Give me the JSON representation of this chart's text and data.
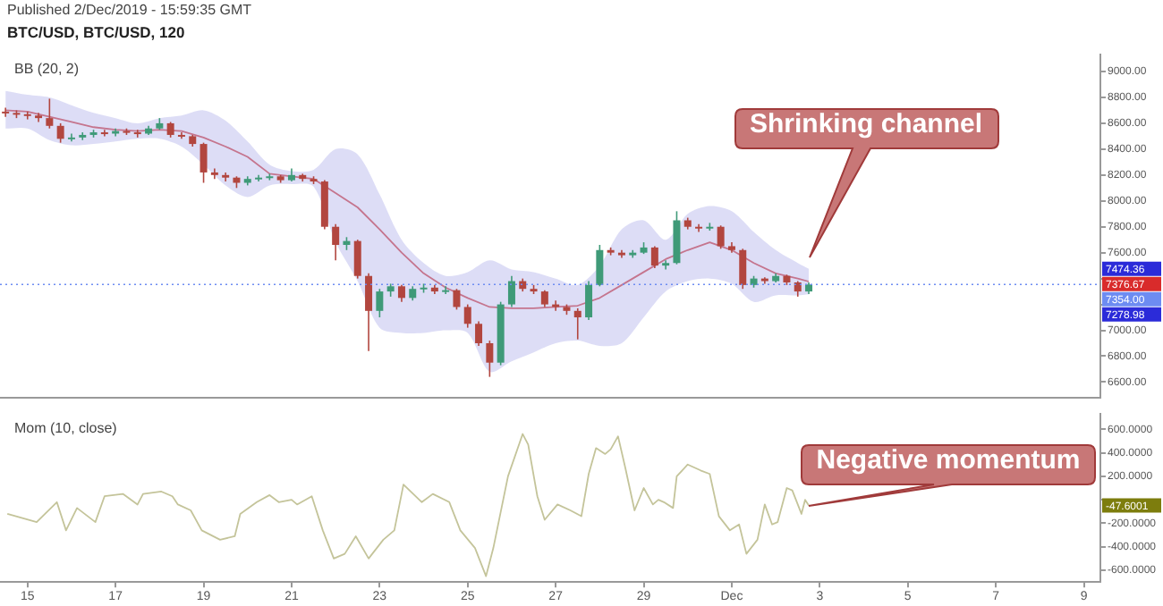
{
  "chart_data": [
    {
      "type": "candlestick",
      "title": "Published 2/Dec/2019 - 15:59:35 GMT",
      "subtitle": "BTC/USD, BTC/USD, 120",
      "x": [
        "2019-11-14T12:00",
        "2019-11-14T18:00",
        "2019-11-15T00:00",
        "2019-11-15T06:00",
        "2019-11-15T12:00",
        "2019-11-15T18:00",
        "2019-11-16T00:00",
        "2019-11-16T06:00",
        "2019-11-16T12:00",
        "2019-11-16T18:00",
        "2019-11-17T00:00",
        "2019-11-17T06:00",
        "2019-11-17T12:00",
        "2019-11-17T18:00",
        "2019-11-18T00:00",
        "2019-11-18T06:00",
        "2019-11-18T12:00",
        "2019-11-18T18:00",
        "2019-11-19T00:00",
        "2019-11-19T06:00",
        "2019-11-19T12:00",
        "2019-11-19T18:00",
        "2019-11-20T00:00",
        "2019-11-20T06:00",
        "2019-11-20T12:00",
        "2019-11-20T18:00",
        "2019-11-21T00:00",
        "2019-11-21T06:00",
        "2019-11-21T12:00",
        "2019-11-21T18:00",
        "2019-11-22T00:00",
        "2019-11-22T06:00",
        "2019-11-22T12:00",
        "2019-11-22T18:00",
        "2019-11-23T00:00",
        "2019-11-23T06:00",
        "2019-11-23T12:00",
        "2019-11-23T18:00",
        "2019-11-24T00:00",
        "2019-11-24T06:00",
        "2019-11-24T12:00",
        "2019-11-24T18:00",
        "2019-11-25T00:00",
        "2019-11-25T06:00",
        "2019-11-25T12:00",
        "2019-11-25T18:00",
        "2019-11-26T00:00",
        "2019-11-26T06:00",
        "2019-11-26T12:00",
        "2019-11-26T18:00",
        "2019-11-27T00:00",
        "2019-11-27T06:00",
        "2019-11-27T12:00",
        "2019-11-27T18:00",
        "2019-11-28T00:00",
        "2019-11-28T06:00",
        "2019-11-28T12:00",
        "2019-11-28T18:00",
        "2019-11-29T00:00",
        "2019-11-29T06:00",
        "2019-11-29T12:00",
        "2019-11-29T18:00",
        "2019-11-30T00:00",
        "2019-11-30T06:00",
        "2019-11-30T12:00",
        "2019-11-30T18:00",
        "2019-12-01T00:00",
        "2019-12-01T06:00",
        "2019-12-01T12:00",
        "2019-12-01T18:00",
        "2019-12-02T00:00",
        "2019-12-02T06:00",
        "2019-12-02T12:00",
        "2019-12-02T18:00"
      ],
      "ohlc": [
        [
          8690,
          8720,
          8650,
          8680
        ],
        [
          8680,
          8700,
          8640,
          8670
        ],
        [
          8670,
          8690,
          8630,
          8660
        ],
        [
          8660,
          8680,
          8610,
          8640
        ],
        [
          8640,
          8790,
          8560,
          8580
        ],
        [
          8580,
          8600,
          8450,
          8480
        ],
        [
          8480,
          8520,
          8460,
          8490
        ],
        [
          8490,
          8530,
          8470,
          8510
        ],
        [
          8510,
          8550,
          8490,
          8530
        ],
        [
          8530,
          8550,
          8500,
          8520
        ],
        [
          8520,
          8560,
          8500,
          8540
        ],
        [
          8540,
          8560,
          8510,
          8530
        ],
        [
          8530,
          8550,
          8490,
          8520
        ],
        [
          8520,
          8580,
          8510,
          8560
        ],
        [
          8560,
          8640,
          8550,
          8600
        ],
        [
          8600,
          8610,
          8490,
          8510
        ],
        [
          8510,
          8530,
          8480,
          8500
        ],
        [
          8500,
          8510,
          8420,
          8440
        ],
        [
          8440,
          8450,
          8140,
          8220
        ],
        [
          8220,
          8250,
          8170,
          8200
        ],
        [
          8200,
          8220,
          8150,
          8180
        ],
        [
          8180,
          8190,
          8100,
          8140
        ],
        [
          8140,
          8190,
          8120,
          8170
        ],
        [
          8170,
          8200,
          8150,
          8180
        ],
        [
          8180,
          8210,
          8160,
          8190
        ],
        [
          8190,
          8200,
          8140,
          8160
        ],
        [
          8160,
          8250,
          8150,
          8200
        ],
        [
          8200,
          8210,
          8150,
          8170
        ],
        [
          8170,
          8190,
          8130,
          8150
        ],
        [
          8150,
          8160,
          7780,
          7800
        ],
        [
          7800,
          7820,
          7540,
          7660
        ],
        [
          7660,
          7720,
          7620,
          7690
        ],
        [
          7690,
          7700,
          7400,
          7420
        ],
        [
          7420,
          7440,
          6840,
          7150
        ],
        [
          7150,
          7320,
          7100,
          7300
        ],
        [
          7300,
          7360,
          7260,
          7340
        ],
        [
          7340,
          7350,
          7220,
          7250
        ],
        [
          7250,
          7340,
          7230,
          7320
        ],
        [
          7320,
          7360,
          7290,
          7330
        ],
        [
          7330,
          7350,
          7280,
          7300
        ],
        [
          7300,
          7340,
          7280,
          7310
        ],
        [
          7310,
          7320,
          7160,
          7180
        ],
        [
          7180,
          7200,
          7020,
          7050
        ],
        [
          7050,
          7070,
          6880,
          6900
        ],
        [
          6900,
          6920,
          6640,
          6750
        ],
        [
          6750,
          7220,
          6730,
          7200
        ],
        [
          7200,
          7420,
          7180,
          7380
        ],
        [
          7380,
          7400,
          7300,
          7320
        ],
        [
          7320,
          7350,
          7280,
          7300
        ],
        [
          7300,
          7310,
          7180,
          7200
        ],
        [
          7200,
          7230,
          7150,
          7180
        ],
        [
          7180,
          7200,
          7120,
          7150
        ],
        [
          7150,
          7170,
          6930,
          7100
        ],
        [
          7100,
          7380,
          7080,
          7350
        ],
        [
          7350,
          7660,
          7340,
          7620
        ],
        [
          7620,
          7640,
          7580,
          7600
        ],
        [
          7600,
          7620,
          7560,
          7580
        ],
        [
          7580,
          7620,
          7560,
          7600
        ],
        [
          7600,
          7680,
          7590,
          7640
        ],
        [
          7640,
          7650,
          7480,
          7500
        ],
        [
          7500,
          7540,
          7470,
          7520
        ],
        [
          7520,
          7920,
          7510,
          7850
        ],
        [
          7850,
          7870,
          7780,
          7800
        ],
        [
          7800,
          7820,
          7760,
          7790
        ],
        [
          7790,
          7830,
          7770,
          7800
        ],
        [
          7800,
          7810,
          7630,
          7650
        ],
        [
          7650,
          7680,
          7600,
          7620
        ],
        [
          7620,
          7630,
          7320,
          7350
        ],
        [
          7350,
          7420,
          7330,
          7400
        ],
        [
          7400,
          7410,
          7360,
          7380
        ],
        [
          7380,
          7440,
          7370,
          7420
        ],
        [
          7420,
          7430,
          7350,
          7370
        ],
        [
          7370,
          7380,
          7260,
          7300
        ],
        [
          7300,
          7370,
          7280,
          7354
        ]
      ],
      "colors": [
        "#b2463f",
        "#b2463f",
        "#b2463f",
        "#b2463f",
        "#b2463f",
        "#b2463f",
        "#3f9a78",
        "#3f9a78",
        "#3f9a78",
        "#b2463f",
        "#3f9a78",
        "#b2463f",
        "#b2463f",
        "#3f9a78",
        "#3f9a78",
        "#b2463f",
        "#b2463f",
        "#b2463f",
        "#b2463f",
        "#b2463f",
        "#b2463f",
        "#b2463f",
        "#3f9a78",
        "#3f9a78",
        "#3f9a78",
        "#b2463f",
        "#3f9a78",
        "#b2463f",
        "#b2463f",
        "#b2463f",
        "#b2463f",
        "#3f9a78",
        "#b2463f",
        "#b2463f",
        "#3f9a78",
        "#3f9a78",
        "#b2463f",
        "#3f9a78",
        "#3f9a78",
        "#b2463f",
        "#3f9a78",
        "#b2463f",
        "#b2463f",
        "#b2463f",
        "#b2463f",
        "#3f9a78",
        "#3f9a78",
        "#b2463f",
        "#b2463f",
        "#b2463f",
        "#b2463f",
        "#b2463f",
        "#b2463f",
        "#3f9a78",
        "#3f9a78",
        "#b2463f",
        "#b2463f",
        "#3f9a78",
        "#3f9a78",
        "#b2463f",
        "#3f9a78",
        "#3f9a78",
        "#b2463f",
        "#b2463f",
        "#3f9a78",
        "#b2463f",
        "#b2463f",
        "#b2463f",
        "#3f9a78",
        "#b2463f",
        "#3f9a78",
        "#b2463f",
        "#b2463f",
        "#3f9a78"
      ],
      "series": [
        {
          "name": "BB (20, 2)",
          "type": "line",
          "color": "#e07a7a",
          "x": [
            "2019-11-14T12:00",
            "2019-11-15T00:00",
            "2019-11-15T12:00",
            "2019-11-16T00:00",
            "2019-11-16T12:00",
            "2019-11-17T00:00",
            "2019-11-17T12:00",
            "2019-11-18T00:00",
            "2019-11-18T12:00",
            "2019-11-19T00:00",
            "2019-11-19T12:00",
            "2019-11-20T00:00",
            "2019-11-20T12:00",
            "2019-11-21T00:00",
            "2019-11-21T12:00",
            "2019-11-22T00:00",
            "2019-11-22T12:00",
            "2019-11-23T00:00",
            "2019-11-23T12:00",
            "2019-11-24T00:00",
            "2019-11-24T12:00",
            "2019-11-25T00:00",
            "2019-11-25T12:00",
            "2019-11-26T00:00",
            "2019-11-26T12:00",
            "2019-11-27T00:00",
            "2019-11-27T12:00",
            "2019-11-28T00:00",
            "2019-11-28T12:00",
            "2019-11-29T00:00",
            "2019-11-29T12:00",
            "2019-11-30T00:00",
            "2019-11-30T12:00",
            "2019-12-01T00:00",
            "2019-12-01T12:00",
            "2019-12-02T00:00",
            "2019-12-02T12:00",
            "2019-12-02T18:00"
          ],
          "values": [
            8700,
            8690,
            8650,
            8610,
            8570,
            8550,
            8540,
            8550,
            8540,
            8490,
            8420,
            8340,
            8210,
            8190,
            8170,
            8060,
            7950,
            7780,
            7600,
            7440,
            7330,
            7250,
            7180,
            7170,
            7170,
            7180,
            7190,
            7250,
            7350,
            7450,
            7550,
            7620,
            7680,
            7620,
            7520,
            7440,
            7400,
            7376.67
          ],
          "upper": [
            8850,
            8820,
            8800,
            8740,
            8680,
            8640,
            8600,
            8640,
            8660,
            8700,
            8620,
            8460,
            8280,
            8230,
            8240,
            8400,
            8360,
            8050,
            7700,
            7520,
            7420,
            7450,
            7540,
            7470,
            7450,
            7400,
            7350,
            7500,
            7780,
            7850,
            7700,
            7900,
            7960,
            7920,
            7760,
            7620,
            7520,
            7474.36
          ],
          "lower": [
            8560,
            8560,
            8470,
            8430,
            8440,
            8460,
            8480,
            8480,
            8420,
            8280,
            8120,
            8030,
            8120,
            8130,
            8110,
            7680,
            7380,
            7020,
            6980,
            6980,
            7000,
            6980,
            6680,
            6760,
            6830,
            6900,
            6920,
            6880,
            6900,
            7100,
            7300,
            7380,
            7400,
            7360,
            7220,
            7270,
            7270,
            7278.98
          ]
        }
      ],
      "xlim": [
        "2019-11-14T09:00",
        "2019-12-09T09:00"
      ],
      "ylim": [
        6480,
        9130
      ],
      "yticks": [
        {
          "value": 6600,
          "label": "6600.00"
        },
        {
          "value": 6800,
          "label": "6800.00"
        },
        {
          "value": 7000,
          "label": "7000.00"
        },
        {
          "value": 7200,
          "label": null
        },
        {
          "value": 7400,
          "label": null
        },
        {
          "value": 7600,
          "label": "7600.00"
        },
        {
          "value": 7800,
          "label": "7800.00"
        },
        {
          "value": 8000,
          "label": "8000.00"
        },
        {
          "value": 8200,
          "label": "8200.00"
        },
        {
          "value": 8400,
          "label": "8400.00"
        },
        {
          "value": 8600,
          "label": "8600.00"
        },
        {
          "value": 8800,
          "label": "8800.00"
        },
        {
          "value": 9000,
          "label": "9000.00"
        }
      ],
      "tick_labels": "y",
      "legend": "top left",
      "marker": "none",
      "ref_lines": [
        {
          "axis": "y",
          "value": 7354,
          "label": "7354.00",
          "color": "#6d8cf2",
          "line_style": "dotted"
        }
      ],
      "annotations": [
        "7474.36",
        "7376.67",
        "7278.98",
        "Shrinking channel"
      ]
    },
    {
      "type": "line",
      "legend": "top left",
      "marker": "none",
      "series": [
        {
          "name": "Mom (10, close)",
          "color": "#c4c49a",
          "x": [
            "2019-11-14T13:00",
            "2019-11-15T05:00",
            "2019-11-15T16:00",
            "2019-11-15T21:00",
            "2019-11-16T03:00",
            "2019-11-16T13:00",
            "2019-11-16T18:00",
            "2019-11-17T04:00",
            "2019-11-17T12:00",
            "2019-11-17T15:00",
            "2019-11-18T01:00",
            "2019-11-18T07:00",
            "2019-11-18T10:00",
            "2019-11-18T17:00",
            "2019-11-18T23:00",
            "2019-11-19T09:00",
            "2019-11-19T17:00",
            "2019-11-19T20:00",
            "2019-11-20T05:00",
            "2019-11-20T12:00",
            "2019-11-20T17:00",
            "2019-11-21T00:00",
            "2019-11-21T03:00",
            "2019-11-21T11:00",
            "2019-11-21T17:00",
            "2019-11-21T23:00",
            "2019-11-22T05:00",
            "2019-11-22T11:00",
            "2019-11-22T18:00",
            "2019-11-23T02:00",
            "2019-11-23T08:00",
            "2019-11-23T13:00",
            "2019-11-23T23:00",
            "2019-11-24T05:00",
            "2019-11-24T14:00",
            "2019-11-24T20:00",
            "2019-11-25T04:00",
            "2019-11-25T10:00",
            "2019-11-25T14:00",
            "2019-11-25T22:00",
            "2019-11-26T06:00",
            "2019-11-26T09:00",
            "2019-11-26T14:00",
            "2019-11-26T18:00",
            "2019-11-27T01:00",
            "2019-11-27T08:00",
            "2019-11-27T14:00",
            "2019-11-27T18:00",
            "2019-11-27T22:00",
            "2019-11-28T03:00",
            "2019-11-28T06:00",
            "2019-11-28T10:00",
            "2019-11-28T14:00",
            "2019-11-28T19:00",
            "2019-11-29T00:00",
            "2019-11-29T05:00",
            "2019-11-29T08:00",
            "2019-11-29T11:00",
            "2019-11-29T16:00",
            "2019-11-29T18:00",
            "2019-11-30T00:00",
            "2019-11-30T07:00",
            "2019-11-30T12:00",
            "2019-11-30T17:00",
            "2019-11-30T23:00",
            "2019-12-01T04:00",
            "2019-12-01T08:00",
            "2019-12-01T14:00",
            "2019-12-01T18:00",
            "2019-12-01T22:00",
            "2019-12-02T01:00",
            "2019-12-02T06:00",
            "2019-12-02T09:00",
            "2019-12-02T14:00",
            "2019-12-02T16:00",
            "2019-12-02T18:00"
          ],
          "values": [
            -120,
            -190,
            -20,
            -260,
            -70,
            -190,
            30,
            50,
            -40,
            50,
            70,
            30,
            -40,
            -90,
            -260,
            -340,
            -310,
            -120,
            -20,
            40,
            -20,
            0,
            -40,
            30,
            -260,
            -500,
            -460,
            -310,
            -500,
            -340,
            -260,
            130,
            -20,
            50,
            -20,
            -260,
            -410,
            -650,
            -410,
            200,
            560,
            470,
            30,
            -170,
            -40,
            -90,
            -140,
            220,
            440,
            390,
            430,
            540,
            270,
            -90,
            100,
            -40,
            0,
            -20,
            -70,
            200,
            300,
            250,
            220,
            -140,
            -260,
            -210,
            -460,
            -340,
            -40,
            -210,
            -190,
            100,
            80,
            -120,
            0,
            -47.6001
          ]
        }
      ],
      "xlim": [
        "2019-11-14T09:00",
        "2019-12-09T09:00"
      ],
      "xticks": [
        {
          "value": "2019-11-15",
          "label": "15"
        },
        {
          "value": "2019-11-17",
          "label": "17"
        },
        {
          "value": "2019-11-19",
          "label": "19"
        },
        {
          "value": "2019-11-21",
          "label": "21"
        },
        {
          "value": "2019-11-23",
          "label": "23"
        },
        {
          "value": "2019-11-25",
          "label": "25"
        },
        {
          "value": "2019-11-27",
          "label": "27"
        },
        {
          "value": "2019-11-29",
          "label": "29"
        },
        {
          "value": "2019-12-01",
          "label": "Dec"
        },
        {
          "value": "2019-12-03",
          "label": "3"
        },
        {
          "value": "2019-12-05",
          "label": "5"
        },
        {
          "value": "2019-12-07",
          "label": "7"
        },
        {
          "value": "2019-12-09",
          "label": "9"
        }
      ],
      "ylim": [
        -700,
        730
      ],
      "yticks": [
        {
          "value": -600,
          "label": "-600.0000"
        },
        {
          "value": -400,
          "label": "-400.0000"
        },
        {
          "value": -200,
          "label": "-200.0000"
        },
        {
          "value": 0,
          "label": null
        },
        {
          "value": 200,
          "label": "200.0000"
        },
        {
          "value": 400,
          "label": "400.0000"
        },
        {
          "value": 600,
          "label": "600.0000"
        }
      ],
      "annotations": [
        "-47.6001",
        "Negative momentum"
      ]
    }
  ]
}
